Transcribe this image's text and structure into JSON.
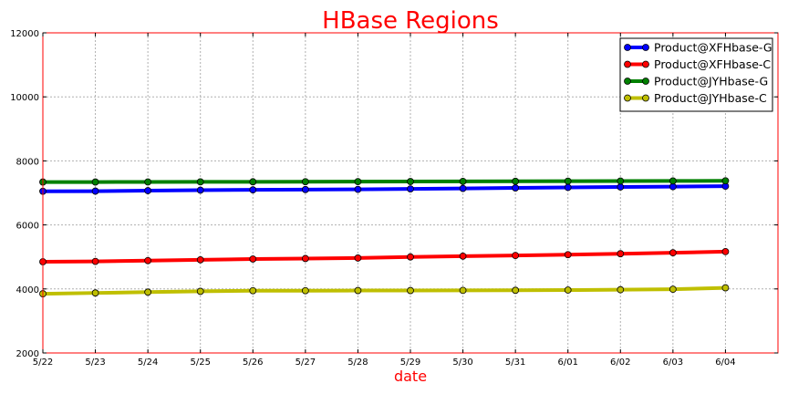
{
  "chart_data": {
    "type": "line",
    "title": "HBase Regions",
    "xlabel": "date",
    "ylabel": "",
    "title_color": "#ff0000",
    "xlabel_color": "#ff0000",
    "frame_color": "#ff0000",
    "categories": [
      "5/22",
      "5/23",
      "5/24",
      "5/25",
      "5/26",
      "5/27",
      "5/28",
      "5/29",
      "5/30",
      "5/31",
      "6/01",
      "6/02",
      "6/03",
      "6/04"
    ],
    "xlim": [
      0,
      14
    ],
    "ylim": [
      2000,
      12000
    ],
    "yticks": [
      "2000",
      "4000",
      "6000",
      "8000",
      "10000",
      "12000"
    ],
    "grid": true,
    "legend_position": "top-right",
    "series": [
      {
        "name": "Product@XFHbase-G",
        "color": "#0000ff",
        "values": [
          7050,
          7055,
          7070,
          7085,
          7095,
          7105,
          7110,
          7125,
          7140,
          7155,
          7170,
          7185,
          7195,
          7210
        ]
      },
      {
        "name": "Product@XFHbase-C",
        "color": "#ff0000",
        "values": [
          4850,
          4860,
          4885,
          4910,
          4935,
          4950,
          4965,
          5000,
          5025,
          5045,
          5070,
          5100,
          5130,
          5165
        ]
      },
      {
        "name": "Product@JYHbase-G",
        "color": "#008000",
        "values": [
          7340,
          7340,
          7342,
          7345,
          7347,
          7350,
          7352,
          7355,
          7360,
          7363,
          7367,
          7370,
          7373,
          7377
        ]
      },
      {
        "name": "Product@JYHbase-C",
        "color": "#bfbf00",
        "values": [
          3850,
          3875,
          3900,
          3925,
          3945,
          3945,
          3950,
          3950,
          3955,
          3957,
          3965,
          3975,
          3990,
          4035
        ]
      }
    ]
  }
}
